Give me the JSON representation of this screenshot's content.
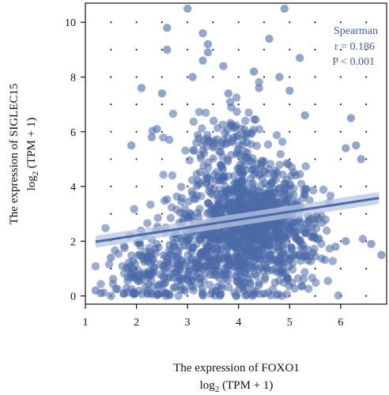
{
  "chart_data": {
    "type": "scatter",
    "xlabel": "The expression of FOXO1",
    "xlabel_unit": "log2 (TPM + 1)",
    "ylabel": "The expression of SIGLEC15",
    "ylabel_unit": "log2 (TPM + 1)",
    "xlim": [
      1,
      6.9
    ],
    "ylim": [
      -0.3,
      10.7
    ],
    "x_ticks": [
      1,
      2,
      3,
      4,
      5,
      6
    ],
    "y_ticks": [
      0,
      2,
      4,
      6,
      8,
      10
    ],
    "grid": "dotted",
    "point_color": "#4a6aa8",
    "line_color": "#4a6aa8",
    "band_color": "#b8c6e0",
    "annotation": {
      "method": "Spearman",
      "r": "r = 0.186",
      "p": "P < 0.001",
      "color": "#3d5fa8",
      "placement": "top-right"
    },
    "regression": {
      "x0": 1.2,
      "y0": 1.98,
      "x1": 6.75,
      "y1": 3.58
    },
    "outliers": [
      [
        3.0,
        10.5
      ],
      [
        4.9,
        10.5
      ],
      [
        2.6,
        9.8
      ],
      [
        3.3,
        9.6
      ],
      [
        4.6,
        9.4
      ],
      [
        2.6,
        9.0
      ],
      [
        3.4,
        9.2
      ],
      [
        3.4,
        8.9
      ],
      [
        5.2,
        8.7
      ],
      [
        3.7,
        8.4
      ],
      [
        3.3,
        8.6
      ],
      [
        4.3,
        8.2
      ],
      [
        3.1,
        8.0
      ],
      [
        4.8,
        8.0
      ],
      [
        2.1,
        7.6
      ],
      [
        2.5,
        7.4
      ],
      [
        3.8,
        7.4
      ],
      [
        5.0,
        7.5
      ],
      [
        4.4,
        7.6
      ],
      [
        6.2,
        6.5
      ],
      [
        5.3,
        6.6
      ],
      [
        1.9,
        5.5
      ],
      [
        6.1,
        5.4
      ],
      [
        6.4,
        5.0
      ],
      [
        6.3,
        5.5
      ],
      [
        1.5,
        1.4
      ],
      [
        1.2,
        0.2
      ],
      [
        1.5,
        0.0
      ],
      [
        6.6,
        1.9
      ],
      [
        6.8,
        1.5
      ],
      [
        6.1,
        2.0
      ],
      [
        5.9,
        1.8
      ],
      [
        1.3,
        0.1
      ],
      [
        2.4,
        6.1
      ],
      [
        2.3,
        5.8
      ]
    ],
    "clusters": [
      {
        "cx": 4.2,
        "cy": 2.6,
        "sx": 0.55,
        "sy": 1.1,
        "n": 900
      },
      {
        "cx": 3.2,
        "cy": 1.6,
        "sx": 0.6,
        "sy": 1.0,
        "n": 250
      },
      {
        "cx": 2.2,
        "cy": 0.7,
        "sx": 0.4,
        "sy": 0.6,
        "n": 120
      },
      {
        "cx": 3.8,
        "cy": 5.5,
        "sx": 0.5,
        "sy": 0.7,
        "n": 100
      },
      {
        "cx": 5.0,
        "cy": 2.0,
        "sx": 0.4,
        "sy": 1.0,
        "n": 120
      }
    ]
  }
}
